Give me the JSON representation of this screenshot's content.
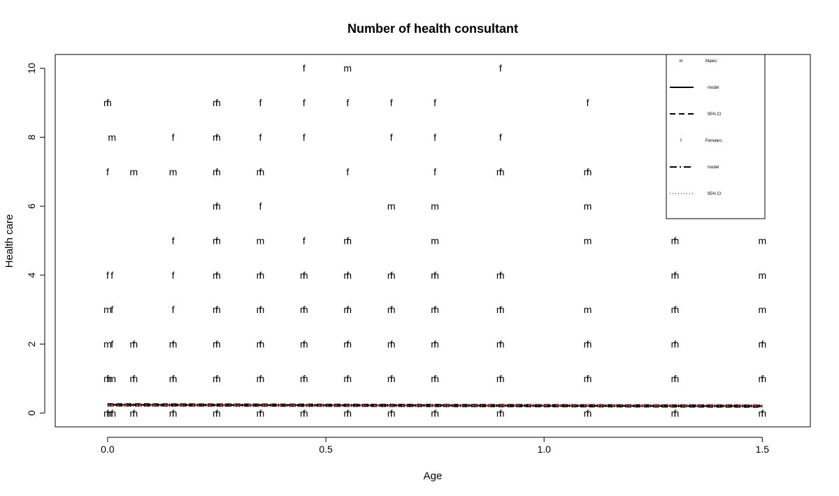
{
  "chart_data": {
    "type": "scatter",
    "title": "Number of health consultant",
    "xlabel": "Age",
    "ylabel": "Health care",
    "xlim": [
      -0.12,
      1.61
    ],
    "ylim": [
      -0.4,
      10.4
    ],
    "x_ticks": [
      0.0,
      0.5,
      1.0,
      1.5
    ],
    "x_tick_labels": [
      "0.0",
      "0.5",
      "1.0",
      "1.5"
    ],
    "y_ticks": [
      0,
      2,
      4,
      6,
      8,
      10
    ],
    "y_tick_labels": [
      "0",
      "2",
      "4",
      "6",
      "8",
      "10"
    ],
    "grid": false,
    "legend_position": "top-right",
    "legend": [
      {
        "symbol": "m",
        "label": "Males:",
        "kind": "symbol"
      },
      {
        "symbol": "",
        "label": "model",
        "kind": "solid"
      },
      {
        "symbol": "",
        "label": "95% CI",
        "kind": "dashed"
      },
      {
        "symbol": "f",
        "label": "Females:",
        "kind": "symbol"
      },
      {
        "symbol": "",
        "label": "model",
        "kind": "dashdot"
      },
      {
        "symbol": "",
        "label": "95% CI",
        "kind": "dotted"
      }
    ],
    "series": [
      {
        "name": "Males:",
        "marker": "m",
        "points": [
          [
            0.0,
            9
          ],
          [
            0.01,
            8
          ],
          [
            0.06,
            7
          ],
          [
            0.15,
            7
          ],
          [
            0.25,
            9
          ],
          [
            0.25,
            8
          ],
          [
            0.25,
            7
          ],
          [
            0.25,
            6
          ],
          [
            0.25,
            5
          ],
          [
            0.35,
            7
          ],
          [
            0.35,
            5
          ],
          [
            0.55,
            10
          ],
          [
            0.55,
            5
          ],
          [
            0.65,
            6
          ],
          [
            0.75,
            6
          ],
          [
            0.75,
            5
          ],
          [
            0.9,
            7
          ],
          [
            1.1,
            7
          ],
          [
            1.1,
            6
          ],
          [
            1.1,
            5
          ],
          [
            1.3,
            5
          ],
          [
            1.5,
            5
          ],
          [
            0.0,
            3
          ],
          [
            0.0,
            2
          ],
          [
            0.0,
            1
          ],
          [
            0.01,
            1
          ],
          [
            0.06,
            2
          ],
          [
            0.06,
            1
          ],
          [
            0.15,
            2
          ],
          [
            0.15,
            1
          ],
          [
            0.25,
            4
          ],
          [
            0.25,
            3
          ],
          [
            0.25,
            2
          ],
          [
            0.25,
            1
          ],
          [
            0.35,
            4
          ],
          [
            0.35,
            3
          ],
          [
            0.35,
            2
          ],
          [
            0.35,
            1
          ],
          [
            0.45,
            4
          ],
          [
            0.45,
            3
          ],
          [
            0.45,
            2
          ],
          [
            0.45,
            1
          ],
          [
            0.55,
            4
          ],
          [
            0.55,
            3
          ],
          [
            0.55,
            2
          ],
          [
            0.55,
            1
          ],
          [
            0.65,
            4
          ],
          [
            0.65,
            3
          ],
          [
            0.65,
            2
          ],
          [
            0.65,
            1
          ],
          [
            0.75,
            4
          ],
          [
            0.75,
            3
          ],
          [
            0.75,
            2
          ],
          [
            0.75,
            1
          ],
          [
            0.9,
            4
          ],
          [
            0.9,
            3
          ],
          [
            0.9,
            2
          ],
          [
            0.9,
            1
          ],
          [
            1.1,
            3
          ],
          [
            1.1,
            2
          ],
          [
            1.1,
            1
          ],
          [
            1.3,
            4
          ],
          [
            1.3,
            3
          ],
          [
            1.3,
            2
          ],
          [
            1.3,
            1
          ],
          [
            1.5,
            4
          ],
          [
            1.5,
            3
          ],
          [
            1.5,
            2
          ],
          [
            1.5,
            1
          ],
          [
            0.0,
            0
          ],
          [
            0.01,
            0
          ],
          [
            0.06,
            0
          ],
          [
            0.15,
            0
          ],
          [
            0.25,
            0
          ],
          [
            0.35,
            0
          ],
          [
            0.45,
            0
          ],
          [
            0.55,
            0
          ],
          [
            0.65,
            0
          ],
          [
            0.75,
            0
          ],
          [
            0.9,
            0
          ],
          [
            1.1,
            0
          ],
          [
            1.3,
            0
          ],
          [
            1.5,
            0
          ]
        ]
      },
      {
        "name": "Females:",
        "marker": "f",
        "points": [
          [
            0.45,
            10
          ],
          [
            0.9,
            10
          ],
          [
            0.0,
            9
          ],
          [
            0.25,
            9
          ],
          [
            0.35,
            9
          ],
          [
            0.45,
            9
          ],
          [
            0.55,
            9
          ],
          [
            0.65,
            9
          ],
          [
            0.75,
            9
          ],
          [
            1.1,
            9
          ],
          [
            0.15,
            8
          ],
          [
            0.25,
            8
          ],
          [
            0.35,
            8
          ],
          [
            0.45,
            8
          ],
          [
            0.65,
            8
          ],
          [
            0.75,
            8
          ],
          [
            0.9,
            8
          ],
          [
            1.5,
            8
          ],
          [
            0.0,
            7
          ],
          [
            0.25,
            7
          ],
          [
            0.35,
            7
          ],
          [
            0.55,
            7
          ],
          [
            0.75,
            7
          ],
          [
            0.9,
            7
          ],
          [
            1.1,
            7
          ],
          [
            1.5,
            7
          ],
          [
            0.25,
            6
          ],
          [
            0.35,
            6
          ],
          [
            0.15,
            5
          ],
          [
            0.25,
            5
          ],
          [
            0.45,
            5
          ],
          [
            0.55,
            5
          ],
          [
            1.3,
            5
          ],
          [
            0.0,
            4
          ],
          [
            0.01,
            4
          ],
          [
            0.15,
            4
          ],
          [
            0.25,
            4
          ],
          [
            0.35,
            4
          ],
          [
            0.45,
            4
          ],
          [
            0.55,
            4
          ],
          [
            0.65,
            4
          ],
          [
            0.75,
            4
          ],
          [
            0.9,
            4
          ],
          [
            1.3,
            4
          ],
          [
            0.01,
            3
          ],
          [
            0.15,
            3
          ],
          [
            0.25,
            3
          ],
          [
            0.35,
            3
          ],
          [
            0.45,
            3
          ],
          [
            0.55,
            3
          ],
          [
            0.65,
            3
          ],
          [
            0.75,
            3
          ],
          [
            0.9,
            3
          ],
          [
            1.3,
            3
          ],
          [
            0.01,
            2
          ],
          [
            0.06,
            2
          ],
          [
            0.15,
            2
          ],
          [
            0.25,
            2
          ],
          [
            0.35,
            2
          ],
          [
            0.45,
            2
          ],
          [
            0.55,
            2
          ],
          [
            0.65,
            2
          ],
          [
            0.75,
            2
          ],
          [
            0.9,
            2
          ],
          [
            1.1,
            2
          ],
          [
            1.3,
            2
          ],
          [
            1.5,
            2
          ],
          [
            0.0,
            1
          ],
          [
            0.06,
            1
          ],
          [
            0.15,
            1
          ],
          [
            0.25,
            1
          ],
          [
            0.35,
            1
          ],
          [
            0.45,
            1
          ],
          [
            0.55,
            1
          ],
          [
            0.65,
            1
          ],
          [
            0.75,
            1
          ],
          [
            0.9,
            1
          ],
          [
            1.1,
            1
          ],
          [
            1.3,
            1
          ],
          [
            1.5,
            1
          ],
          [
            0.0,
            0
          ],
          [
            0.01,
            0
          ],
          [
            0.06,
            0
          ],
          [
            0.15,
            0
          ],
          [
            0.25,
            0
          ],
          [
            0.35,
            0
          ],
          [
            0.45,
            0
          ],
          [
            0.55,
            0
          ],
          [
            0.65,
            0
          ],
          [
            0.75,
            0
          ],
          [
            0.9,
            0
          ],
          [
            1.1,
            0
          ],
          [
            1.3,
            0
          ],
          [
            1.5,
            0
          ]
        ]
      }
    ],
    "lines": [
      {
        "name": "model",
        "group": "Males:",
        "style": "solid",
        "color": "#000000",
        "x": [
          0.0,
          1.5
        ],
        "y": [
          0.24,
          0.2
        ]
      },
      {
        "name": "95% CI",
        "group": "Males:",
        "style": "dashed",
        "color": "#000000",
        "x": [
          0.0,
          1.5
        ],
        "y": [
          0.26,
          0.22
        ]
      },
      {
        "name": "95% CI",
        "group": "Males:",
        "style": "dashed",
        "color": "#000000",
        "x": [
          0.0,
          1.5
        ],
        "y": [
          0.22,
          0.18
        ]
      },
      {
        "name": "model",
        "group": "Females:",
        "style": "dashdot",
        "color": "#c0392b",
        "x": [
          0.0,
          1.5
        ],
        "y": [
          0.23,
          0.21
        ]
      },
      {
        "name": "95% CI",
        "group": "Females:",
        "style": "dotted",
        "color": "#000000",
        "x": [
          0.0,
          1.5
        ],
        "y": [
          0.25,
          0.23
        ]
      },
      {
        "name": "95% CI",
        "group": "Females:",
        "style": "dotted",
        "color": "#000000",
        "x": [
          0.0,
          1.5
        ],
        "y": [
          0.21,
          0.19
        ]
      }
    ]
  }
}
